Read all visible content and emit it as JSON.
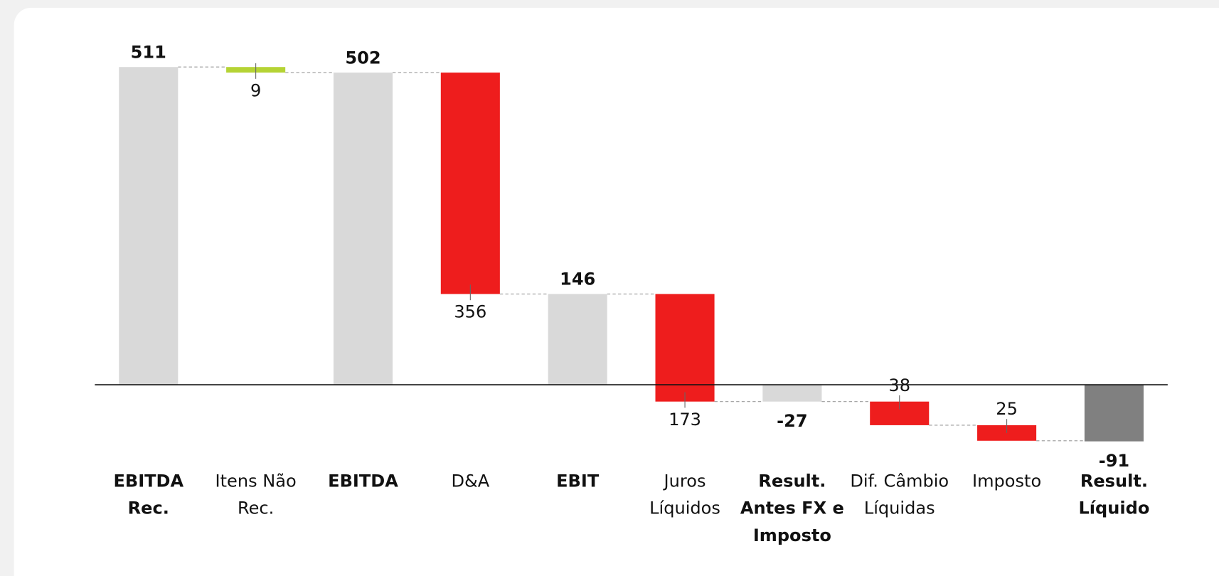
{
  "chart_data": {
    "type": "waterfall",
    "categories": [
      "EBITDA Rec.",
      "Itens Não Rec.",
      "EBITDA",
      "D&A",
      "EBIT",
      "Juros Líquidos",
      "Result. Antes FX e Imposto",
      "Dif. Câmbio Líquidas",
      "Imposto",
      "Result. Líquido"
    ],
    "measure": [
      "total",
      "relative",
      "total",
      "relative",
      "total",
      "relative",
      "total",
      "relative",
      "relative",
      "total"
    ],
    "values": [
      511,
      -9,
      502,
      -356,
      146,
      -173,
      -27,
      -38,
      -25,
      -91
    ],
    "value_labels": [
      "511",
      "9",
      "502",
      "356",
      "146",
      "173",
      "-27",
      "38",
      "25",
      "-91"
    ],
    "colors": [
      "#d9d9d9",
      "#b5d334",
      "#d9d9d9",
      "#ee1d1d",
      "#d9d9d9",
      "#ee1d1d",
      "#d9d9d9",
      "#ee1d1d",
      "#ee1d1d",
      "#808080"
    ],
    "ylim": [
      -120,
      600
    ]
  }
}
